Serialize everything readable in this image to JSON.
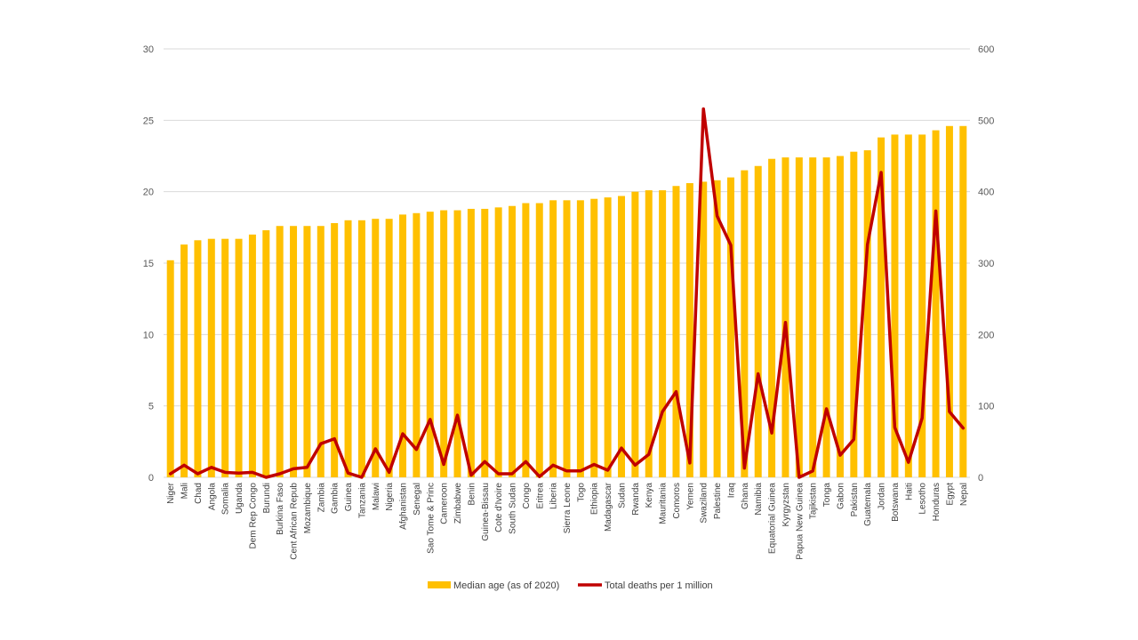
{
  "chart_data": {
    "type": "bar+line",
    "title": "",
    "categories": [
      "Niger",
      "Mali",
      "Chad",
      "Angola",
      "Somalia",
      "Uganda",
      "Dem Rep Congo",
      "Burundi",
      "Burkina Faso",
      "Cent African Repub",
      "Mozambique",
      "Zambia",
      "Gambia",
      "Guinea",
      "Tanzania",
      "Malawi",
      "Nigeria",
      "Afghanistan",
      "Senegal",
      "Sao Tome & Princ",
      "Cameroon",
      "Zimbabwe",
      "Benin",
      "Guinea-Bissau",
      "Cote d'Ivoire",
      "South Sudan",
      "Congo",
      "Eritrea",
      "Liberia",
      "Sierra Leone",
      "Togo",
      "Ethiopia",
      "Madagascar",
      "Sudan",
      "Rwanda",
      "Kenya",
      "Mauritania",
      "Comoros",
      "Yemen",
      "Swaziland",
      "Palestine",
      "Iraq",
      "Ghana",
      "Namibia",
      "Equatorial Guinea",
      "Kyrgyzstan",
      "Papua New Guinea",
      "Tajikistan",
      "Tonga",
      "Gabon",
      "Pakistan",
      "Guatemala",
      "Jordan",
      "Botswana",
      "Haiti",
      "Lesotho",
      "Honduras",
      "Egypt",
      "Nepal"
    ],
    "series": [
      {
        "name": "Median age (as of 2020)",
        "type": "bar",
        "axis": "left",
        "color": "#FFC000",
        "values": [
          15.2,
          16.3,
          16.6,
          16.7,
          16.7,
          16.7,
          17.0,
          17.3,
          17.6,
          17.6,
          17.6,
          17.6,
          17.8,
          18.0,
          18.0,
          18.1,
          18.1,
          18.4,
          18.5,
          18.6,
          18.7,
          18.7,
          18.8,
          18.8,
          18.9,
          19.0,
          19.2,
          19.2,
          19.4,
          19.4,
          19.4,
          19.5,
          19.6,
          19.7,
          20.0,
          20.1,
          20.1,
          20.4,
          20.6,
          20.7,
          20.8,
          21.0,
          21.5,
          21.8,
          22.3,
          22.4,
          22.4,
          22.4,
          22.4,
          22.5,
          22.8,
          22.9,
          23.8,
          24.0,
          24.0,
          24.0,
          24.3,
          24.6,
          24.6
        ]
      },
      {
        "name": "Total deaths per 1 million",
        "type": "line",
        "axis": "right",
        "color": "#C00000",
        "values": [
          5,
          17,
          5,
          14,
          7,
          6,
          7,
          0,
          5,
          12,
          14,
          47,
          54,
          6,
          0,
          40,
          7,
          61,
          39,
          81,
          18,
          87,
          3,
          22,
          5,
          5,
          22,
          1,
          17,
          9,
          9,
          18,
          10,
          41,
          17,
          32,
          92,
          120,
          20,
          516,
          366,
          325,
          13,
          145,
          62,
          217,
          0,
          9,
          96,
          31,
          53,
          326,
          427,
          70,
          21,
          83,
          373,
          92,
          69
        ]
      }
    ],
    "y_left": {
      "min": 0,
      "max": 30,
      "ticks": [
        0,
        5,
        10,
        15,
        20,
        25,
        30
      ]
    },
    "y_right": {
      "min": 0,
      "max": 600,
      "ticks": [
        0,
        100,
        200,
        300,
        400,
        500,
        600
      ]
    },
    "grid": true,
    "legend_position": "bottom"
  }
}
